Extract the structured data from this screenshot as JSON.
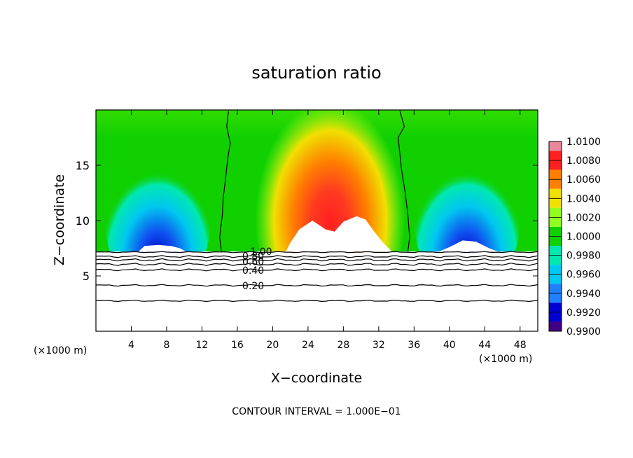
{
  "chart_data": {
    "type": "heatmap",
    "title": "saturation ratio",
    "xlabel": "X−coordinate",
    "ylabel": "Z−coordinate",
    "x_unit_left": "(×1000 m)",
    "x_unit_right": "(×1000 m)",
    "footer": "CONTOUR INTERVAL = 1.000E−01",
    "xlim": [
      0,
      50
    ],
    "ylim": [
      0,
      20
    ],
    "x_ticks": [
      4,
      8,
      12,
      16,
      20,
      24,
      28,
      32,
      36,
      40,
      44,
      48
    ],
    "x_tick_labels": [
      "4",
      "8",
      "12",
      "16",
      "20",
      "24",
      "28",
      "32",
      "36",
      "40",
      "44",
      "48"
    ],
    "y_ticks": [
      5,
      10,
      15
    ],
    "y_tick_labels": [
      "5",
      "10",
      "15"
    ],
    "colorbar": {
      "range": [
        0.99,
        1.01
      ],
      "labels": [
        "1.0100",
        "1.0080",
        "1.0060",
        "1.0040",
        "1.0020",
        "1.0000",
        "0.9980",
        "0.9960",
        "0.9940",
        "0.9920",
        "0.9900"
      ],
      "colors": [
        "#e8889a",
        "#ff2020",
        "#ff8000",
        "#f0e000",
        "#90ff20",
        "#10d000",
        "#00e8b0",
        "#00c8f0",
        "#2080ff",
        "#0000d0",
        "#400080"
      ]
    },
    "contour_labels": [
      {
        "text": "1.00",
        "x": 18.7,
        "z": 7.2
      },
      {
        "text": "0.80",
        "x": 17.8,
        "z": 6.8
      },
      {
        "text": "0.60",
        "x": 17.8,
        "z": 6.3
      },
      {
        "text": "0.40",
        "x": 17.8,
        "z": 5.5
      },
      {
        "text": "0.20",
        "x": 17.8,
        "z": 4.1
      }
    ]
  }
}
